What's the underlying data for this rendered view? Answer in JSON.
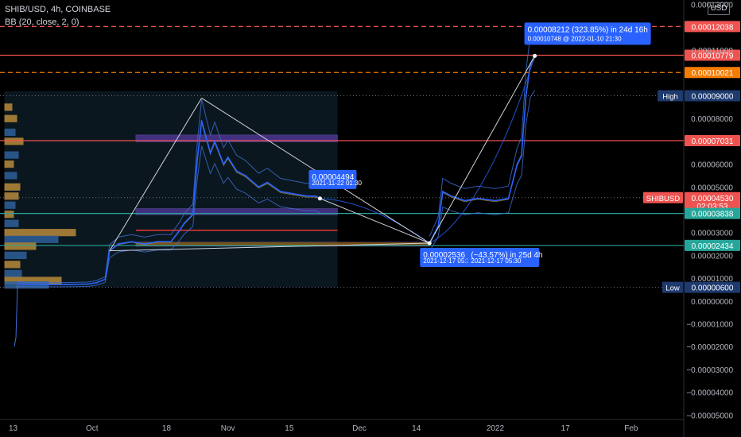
{
  "header": {
    "symbol_line": "SHIB/USD, 4h, COINBASE",
    "indicator_line": "BB (20, close, 2, 0)"
  },
  "currency_button": "USD",
  "colors": {
    "background": "#000000",
    "tag_red": "#ef5350",
    "tag_orange": "#f57c00",
    "tag_green": "#26a69a",
    "tag_navy": "#1e3a6e",
    "tooltip_blue": "#2962ff",
    "price_line": "#2962ff",
    "band_line": "#3f6fd6",
    "zone_purple": "#5b3aa8",
    "zone_orange": "#a46b12"
  },
  "chart_data": {
    "type": "line",
    "title": "SHIB/USD, 4h, COINBASE",
    "xlabel": "",
    "ylabel": "",
    "x_range": [
      "2021-09-10",
      "2022-02-13"
    ],
    "ylim": [
      -5.2e-05,
      0.000132
    ],
    "x_ticks": [
      {
        "label": "13",
        "date": "2021-09-13"
      },
      {
        "label": "Oct",
        "date": "2021-10-01"
      },
      {
        "label": "18",
        "date": "2021-10-18"
      },
      {
        "label": "Nov",
        "date": "2021-11-01"
      },
      {
        "label": "15",
        "date": "2021-11-15"
      },
      {
        "label": "Dec",
        "date": "2021-12-01"
      },
      {
        "label": "14",
        "date": "2021-12-14"
      },
      {
        "label": "2022",
        "date": "2022-01-01"
      },
      {
        "label": "17",
        "date": "2022-01-17"
      },
      {
        "label": "Feb",
        "date": "2022-02-01"
      }
    ],
    "y_ticks": [
      {
        "label": "0.00013000",
        "value": 0.00013
      },
      {
        "label": "0.00011000",
        "value": 0.00011
      },
      {
        "label": "0.00008000",
        "value": 8e-05
      },
      {
        "label": "0.00006000",
        "value": 6e-05
      },
      {
        "label": "0.00005000",
        "value": 5e-05
      },
      {
        "label": "0.00003000",
        "value": 3e-05
      },
      {
        "label": "0.00002000",
        "value": 2e-05
      },
      {
        "label": "0.00001000",
        "value": 1e-05
      },
      {
        "label": "0.00000000",
        "value": 0.0
      },
      {
        "label": "−0.00001000",
        "value": -1e-05
      },
      {
        "label": "−0.00002000",
        "value": -2e-05
      },
      {
        "label": "−0.00003000",
        "value": -3e-05
      },
      {
        "label": "−0.00004000",
        "value": -4e-05
      },
      {
        "label": "−0.00005000",
        "value": -5e-05
      }
    ],
    "price_tags": [
      {
        "label": "0.00012038",
        "value": 0.00012038,
        "color": "#ef5350",
        "line": "dashed"
      },
      {
        "label": "0.00010779",
        "value": 0.00010779,
        "color": "#ef5350",
        "line": "solid"
      },
      {
        "label": "0.00010021",
        "value": 0.00010021,
        "color": "#f57c00",
        "line": "dashed"
      },
      {
        "label": "0.00009000",
        "value": 9e-05,
        "color": "#1e3a6e",
        "line": "dotted",
        "tag": "High"
      },
      {
        "label": "0.00007031",
        "value": 7.031e-05,
        "color": "#ef5350",
        "line": "solid"
      },
      {
        "label": "0.00004530",
        "value": 4.53e-05,
        "color": "#ef5350",
        "line": "dotted",
        "tag": "SHIBUSD",
        "sub": "02:03:53"
      },
      {
        "label": "0.00003838",
        "value": 3.838e-05,
        "color": "#26a69a",
        "line": "solid"
      },
      {
        "label": "0.00002434",
        "value": 2.434e-05,
        "color": "#26a69a",
        "line": "solid"
      },
      {
        "label": "0.00000600",
        "value": 6e-06,
        "color": "#1e3a6e",
        "line": "dotted",
        "tag": "Low"
      }
    ],
    "series": [
      {
        "x": [
          "2021-09-14",
          "2021-09-16",
          "2021-09-20",
          "2021-09-25",
          "2021-09-30",
          "2021-10-02",
          "2021-10-04",
          "2021-10-05",
          "2021-10-07",
          "2021-10-10",
          "2021-10-13",
          "2021-10-16",
          "2021-10-19",
          "2021-10-21",
          "2021-10-22",
          "2021-10-24",
          "2021-10-25",
          "2021-10-26",
          "2021-10-27",
          "2021-10-28",
          "2021-10-29",
          "2021-10-31",
          "2021-11-01",
          "2021-11-03",
          "2021-11-05",
          "2021-11-08",
          "2021-11-10",
          "2021-11-13",
          "2021-11-16",
          "2021-11-19",
          "2021-11-21",
          "2021-11-22"
        ],
        "values": [
          7.5e-06,
          7.3e-06,
          7.2e-06,
          7.2e-06,
          7.4e-06,
          8e-06,
          9.5e-06,
          2.2e-05,
          2.5e-05,
          2.6e-05,
          2.5e-05,
          2.6e-05,
          2.6e-05,
          3.1e-05,
          3.4e-05,
          3.8e-05,
          6.2e-05,
          7.9e-05,
          7.2e-05,
          6.5e-05,
          7e-05,
          6e-05,
          6.3e-05,
          5.7e-05,
          5.5e-05,
          5e-05,
          5.2e-05,
          4.8e-05,
          4.7e-05,
          4.6e-05,
          4.6e-05,
          4.494e-05
        ]
      },
      {
        "x": [
          "2021-12-17",
          "2021-12-19",
          "2021-12-20",
          "2021-12-22",
          "2021-12-25",
          "2021-12-28",
          "2022-01-01",
          "2022-01-04",
          "2022-01-06",
          "2022-01-07",
          "2022-01-08",
          "2022-01-09",
          "2022-01-10"
        ],
        "values": [
          2.536e-05,
          3.3e-05,
          4.8e-05,
          4.6e-05,
          4.4e-05,
          4.5e-05,
          4.4e-05,
          4.5e-05,
          6e-05,
          6.4e-05,
          9e-05,
          0.000104,
          0.00010748
        ]
      }
    ],
    "annotations": [
      {
        "text": "0.00004494",
        "sub": "2021-11-22 01:30",
        "x": "2021-11-22",
        "y": 4.494e-05
      },
      {
        "text": "0.00002536",
        "sub": "2021-12-17 05:30",
        "x": "2021-12-17",
        "y": 2.536e-05
      },
      {
        "text": "(−43.57%) in 25d 4h",
        "sub": "2021-12-17  05:30",
        "x": "2021-12-17",
        "y": 2.536e-05
      },
      {
        "text": "0.00008212 (323.85%) in 24d 16h",
        "sub": "0.00010748 @ 2022-01-10  21:30",
        "x": "2022-01-10",
        "y": 0.00010748
      }
    ],
    "grid": false
  }
}
